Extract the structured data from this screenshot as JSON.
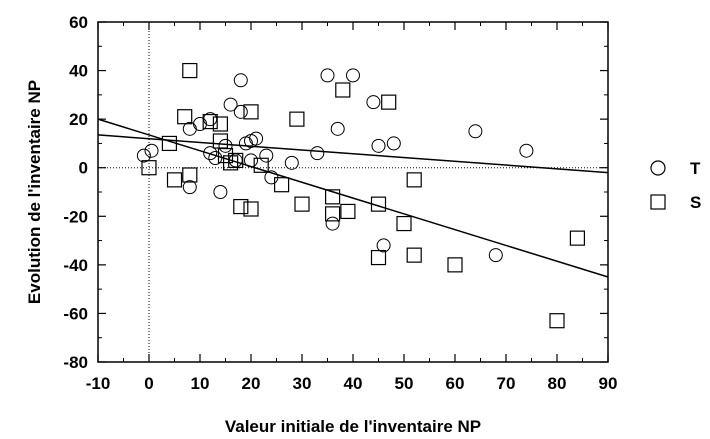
{
  "chart_data": {
    "type": "scatter",
    "title": "",
    "xlabel": "Valeur initiale de l'inventaire NP",
    "ylabel": "Evolution de l'inventaire NP",
    "xlim": [
      -10,
      90
    ],
    "ylim": [
      -80,
      60
    ],
    "x_ticks": [
      -10,
      0,
      10,
      20,
      30,
      40,
      50,
      60,
      70,
      80,
      90
    ],
    "y_ticks": [
      -80,
      -60,
      -40,
      -20,
      0,
      20,
      40,
      60
    ],
    "x_tick_labels": [
      "-10",
      "0",
      "10",
      "20",
      "30",
      "40",
      "50",
      "60",
      "70",
      "80",
      "90"
    ],
    "y_tick_labels": [
      "-80",
      "-60",
      "-40",
      "-20",
      "0",
      "20",
      "40",
      "60"
    ],
    "reference_lines": {
      "x": 0,
      "y": 0,
      "style": "dotted"
    },
    "legend_placement": "right",
    "series": [
      {
        "name": "T",
        "marker": "circle",
        "points": [
          [
            -1,
            5
          ],
          [
            0.5,
            7
          ],
          [
            8,
            16
          ],
          [
            8,
            -8
          ],
          [
            10,
            18
          ],
          [
            12,
            20
          ],
          [
            12,
            6
          ],
          [
            13,
            4
          ],
          [
            14,
            -10
          ],
          [
            15,
            9
          ],
          [
            16,
            26
          ],
          [
            17,
            3
          ],
          [
            18,
            23
          ],
          [
            18,
            36
          ],
          [
            19,
            10
          ],
          [
            20,
            3
          ],
          [
            20,
            11
          ],
          [
            21,
            12
          ],
          [
            23,
            5
          ],
          [
            24,
            -4
          ],
          [
            28,
            2
          ],
          [
            33,
            6
          ],
          [
            35,
            38
          ],
          [
            36,
            -23
          ],
          [
            37,
            16
          ],
          [
            40,
            38
          ],
          [
            44,
            27
          ],
          [
            45,
            9
          ],
          [
            46,
            -32
          ],
          [
            48,
            10
          ],
          [
            64,
            15
          ],
          [
            68,
            -36
          ],
          [
            74,
            7
          ]
        ]
      },
      {
        "name": "S",
        "marker": "square",
        "points": [
          [
            0,
            0
          ],
          [
            4,
            10
          ],
          [
            5,
            -5
          ],
          [
            7,
            21
          ],
          [
            8,
            40
          ],
          [
            8,
            -3
          ],
          [
            12,
            19
          ],
          [
            14,
            18
          ],
          [
            14,
            11
          ],
          [
            15,
            5
          ],
          [
            16,
            2
          ],
          [
            17,
            3
          ],
          [
            18,
            -16
          ],
          [
            20,
            23
          ],
          [
            20,
            -17
          ],
          [
            22,
            1
          ],
          [
            26,
            -7
          ],
          [
            29,
            20
          ],
          [
            30,
            -15
          ],
          [
            36,
            -19
          ],
          [
            36,
            -12
          ],
          [
            38,
            32
          ],
          [
            39,
            -18
          ],
          [
            45,
            -37
          ],
          [
            45,
            -15
          ],
          [
            47,
            27
          ],
          [
            50,
            -23
          ],
          [
            52,
            -36
          ],
          [
            52,
            -5
          ],
          [
            60,
            -40
          ],
          [
            80,
            -63
          ],
          [
            84,
            -29
          ]
        ]
      }
    ],
    "regression_lines": [
      {
        "series": "T",
        "x": [
          -10,
          90
        ],
        "y": [
          13.5,
          -2
        ]
      },
      {
        "series": "S",
        "x": [
          -10,
          90
        ],
        "y": [
          20,
          -45
        ]
      }
    ]
  }
}
